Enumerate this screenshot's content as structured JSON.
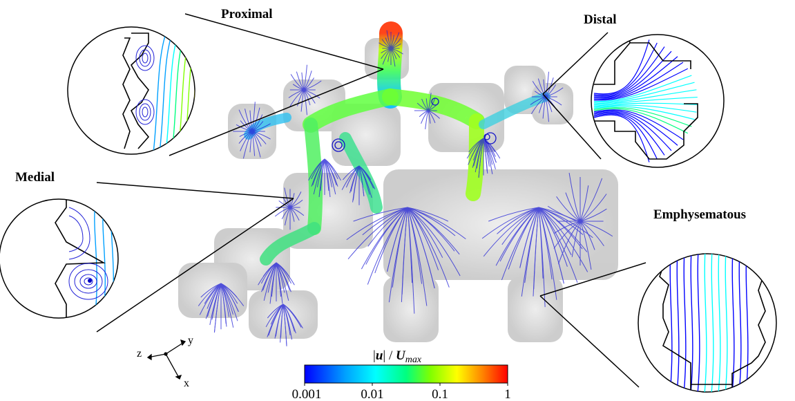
{
  "labels": {
    "proximal": "Proximal",
    "distal": "Distal",
    "medial": "Medial",
    "emphysematous": "Emphysematous"
  },
  "colorbar": {
    "title_pipe_open": "|",
    "title_u": "u",
    "title_pipe_close": "| / ",
    "title_U": "U",
    "title_sub": "max",
    "ticks": [
      "0.001",
      "0.01",
      "0.1",
      "1"
    ],
    "scale": "log",
    "colors": [
      "#0000ff",
      "#00a0ff",
      "#00ffff",
      "#00ff80",
      "#80ff00",
      "#ffff00",
      "#ff8000",
      "#ff0000"
    ]
  },
  "axes": {
    "x": "x",
    "y": "y",
    "z": "z"
  },
  "colors": {
    "tissue_gray": "#c8c8c8",
    "streamline_blue": "#1f1fd6"
  }
}
